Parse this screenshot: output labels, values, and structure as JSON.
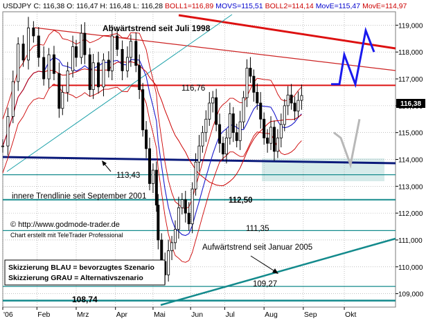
{
  "header": {
    "symbol": "USDJPY",
    "quote": "C: 116,38 O: 116,47 H: 116,48 L: 116,28",
    "boll1": "BOLL1=116,89",
    "movs": "MOVS=115,51",
    "boll2": "BOLL2=114,14",
    "move": "MovE=115,47",
    "move2": "MovE=114,97",
    "colors": {
      "boll": "#cc0000",
      "movs": "#0000cc",
      "move": "#cc0000"
    }
  },
  "annotations": {
    "downtrend_title": "Abwärtstrend seit Juli 1998",
    "inner_trendline": "innere Trendlinie seit September 2001",
    "uptrend_label": "Aufwärtstrend seit Januar 2005",
    "url": "© http://www.godmode-trader.de",
    "credit": "Chart erstellt mit TeleTrader Professional",
    "legend_blue": "Skizzierung BLAU = bevorzugtes Szenario",
    "legend_grey": "Skizzierung GRAU = Alternativszenario"
  },
  "level_labels": [
    "116,76",
    "113,43",
    "112,50",
    "111,35",
    "109,27",
    "108,74"
  ],
  "last_price_label": "116,38",
  "chart_data": {
    "type": "candlestick",
    "instrument": "USDJPY",
    "x_labels": [
      "'06",
      "Feb",
      "Mrz",
      "Apr",
      "Mai",
      "Jun",
      "Jul",
      "Aug",
      "Sep",
      "Okt"
    ],
    "y_ticks": [
      "109,000",
      "110,000",
      "111,000",
      "112,000",
      "113,000",
      "114,000",
      "115,000",
      "116,000",
      "117,000",
      "118,000",
      "119,000"
    ],
    "ylim": [
      108.5,
      119.5
    ],
    "horizontal_levels": [
      116.76,
      113.43,
      112.5,
      111.35,
      109.27,
      108.74
    ],
    "last_close": 116.38,
    "close_path": [
      [
        0,
        114.5
      ],
      [
        3,
        115.6
      ],
      [
        6,
        116.9
      ],
      [
        9,
        118.3
      ],
      [
        12,
        117.7
      ],
      [
        15,
        118.9
      ],
      [
        18,
        118.6
      ],
      [
        21,
        117.8
      ],
      [
        24,
        117.0
      ],
      [
        27,
        117.9
      ],
      [
        30,
        117.2
      ],
      [
        33,
        115.9
      ],
      [
        35,
        116.5
      ],
      [
        38,
        117.3
      ],
      [
        41,
        118.2
      ],
      [
        43,
        117.8
      ],
      [
        46,
        118.7
      ],
      [
        48,
        117.9
      ],
      [
        51,
        116.6
      ],
      [
        53,
        117.6
      ],
      [
        56,
        116.7
      ],
      [
        59,
        117.7
      ],
      [
        62,
        117.3
      ],
      [
        64,
        118.6
      ],
      [
        67,
        118.1
      ],
      [
        70,
        117.3
      ],
      [
        73,
        117.8
      ],
      [
        75,
        118.4
      ],
      [
        78,
        117.5
      ],
      [
        80,
        116.6
      ],
      [
        82,
        115.1
      ],
      [
        84,
        114.4
      ],
      [
        86,
        113.1
      ],
      [
        88,
        113.6
      ],
      [
        90,
        112.3
      ],
      [
        91,
        111.0
      ],
      [
        93,
        110.2
      ],
      [
        95,
        109.7
      ],
      [
        97,
        110.6
      ],
      [
        99,
        110.9
      ],
      [
        101,
        111.4
      ],
      [
        103,
        112.2
      ],
      [
        105,
        112.5
      ],
      [
        107,
        112.0
      ],
      [
        109,
        111.6
      ],
      [
        111,
        112.9
      ],
      [
        113,
        113.9
      ],
      [
        115,
        114.5
      ],
      [
        117,
        115.0
      ],
      [
        119,
        115.5
      ],
      [
        121,
        116.1
      ],
      [
        123,
        116.3
      ],
      [
        125,
        115.3
      ],
      [
        127,
        114.6
      ],
      [
        129,
        114.2
      ],
      [
        131,
        114.8
      ],
      [
        133,
        115.7
      ],
      [
        135,
        115.0
      ],
      [
        137,
        114.7
      ],
      [
        139,
        115.4
      ],
      [
        141,
        116.3
      ],
      [
        143,
        117.4
      ],
      [
        145,
        117.1
      ],
      [
        147,
        116.5
      ],
      [
        149,
        116.1
      ],
      [
        151,
        115.5
      ],
      [
        153,
        114.8
      ],
      [
        155,
        114.6
      ],
      [
        157,
        115.2
      ],
      [
        159,
        114.3
      ],
      [
        161,
        114.8
      ],
      [
        163,
        115.3
      ],
      [
        165,
        116.0
      ],
      [
        167,
        116.4
      ],
      [
        169,
        116.1
      ],
      [
        171,
        115.8
      ],
      [
        173,
        116.2
      ],
      [
        175,
        116.38
      ]
    ],
    "bollinger_upper": 116.89,
    "bollinger_lower": 114.14,
    "movs": 115.51,
    "move_fast": 115.47,
    "move_slow": 114.97,
    "scenario_blue": [
      116.8,
      116.8,
      117.9,
      116.8,
      118.8,
      118.0
    ],
    "scenario_grey": [
      115.0,
      114.8,
      113.8,
      115.5
    ]
  }
}
